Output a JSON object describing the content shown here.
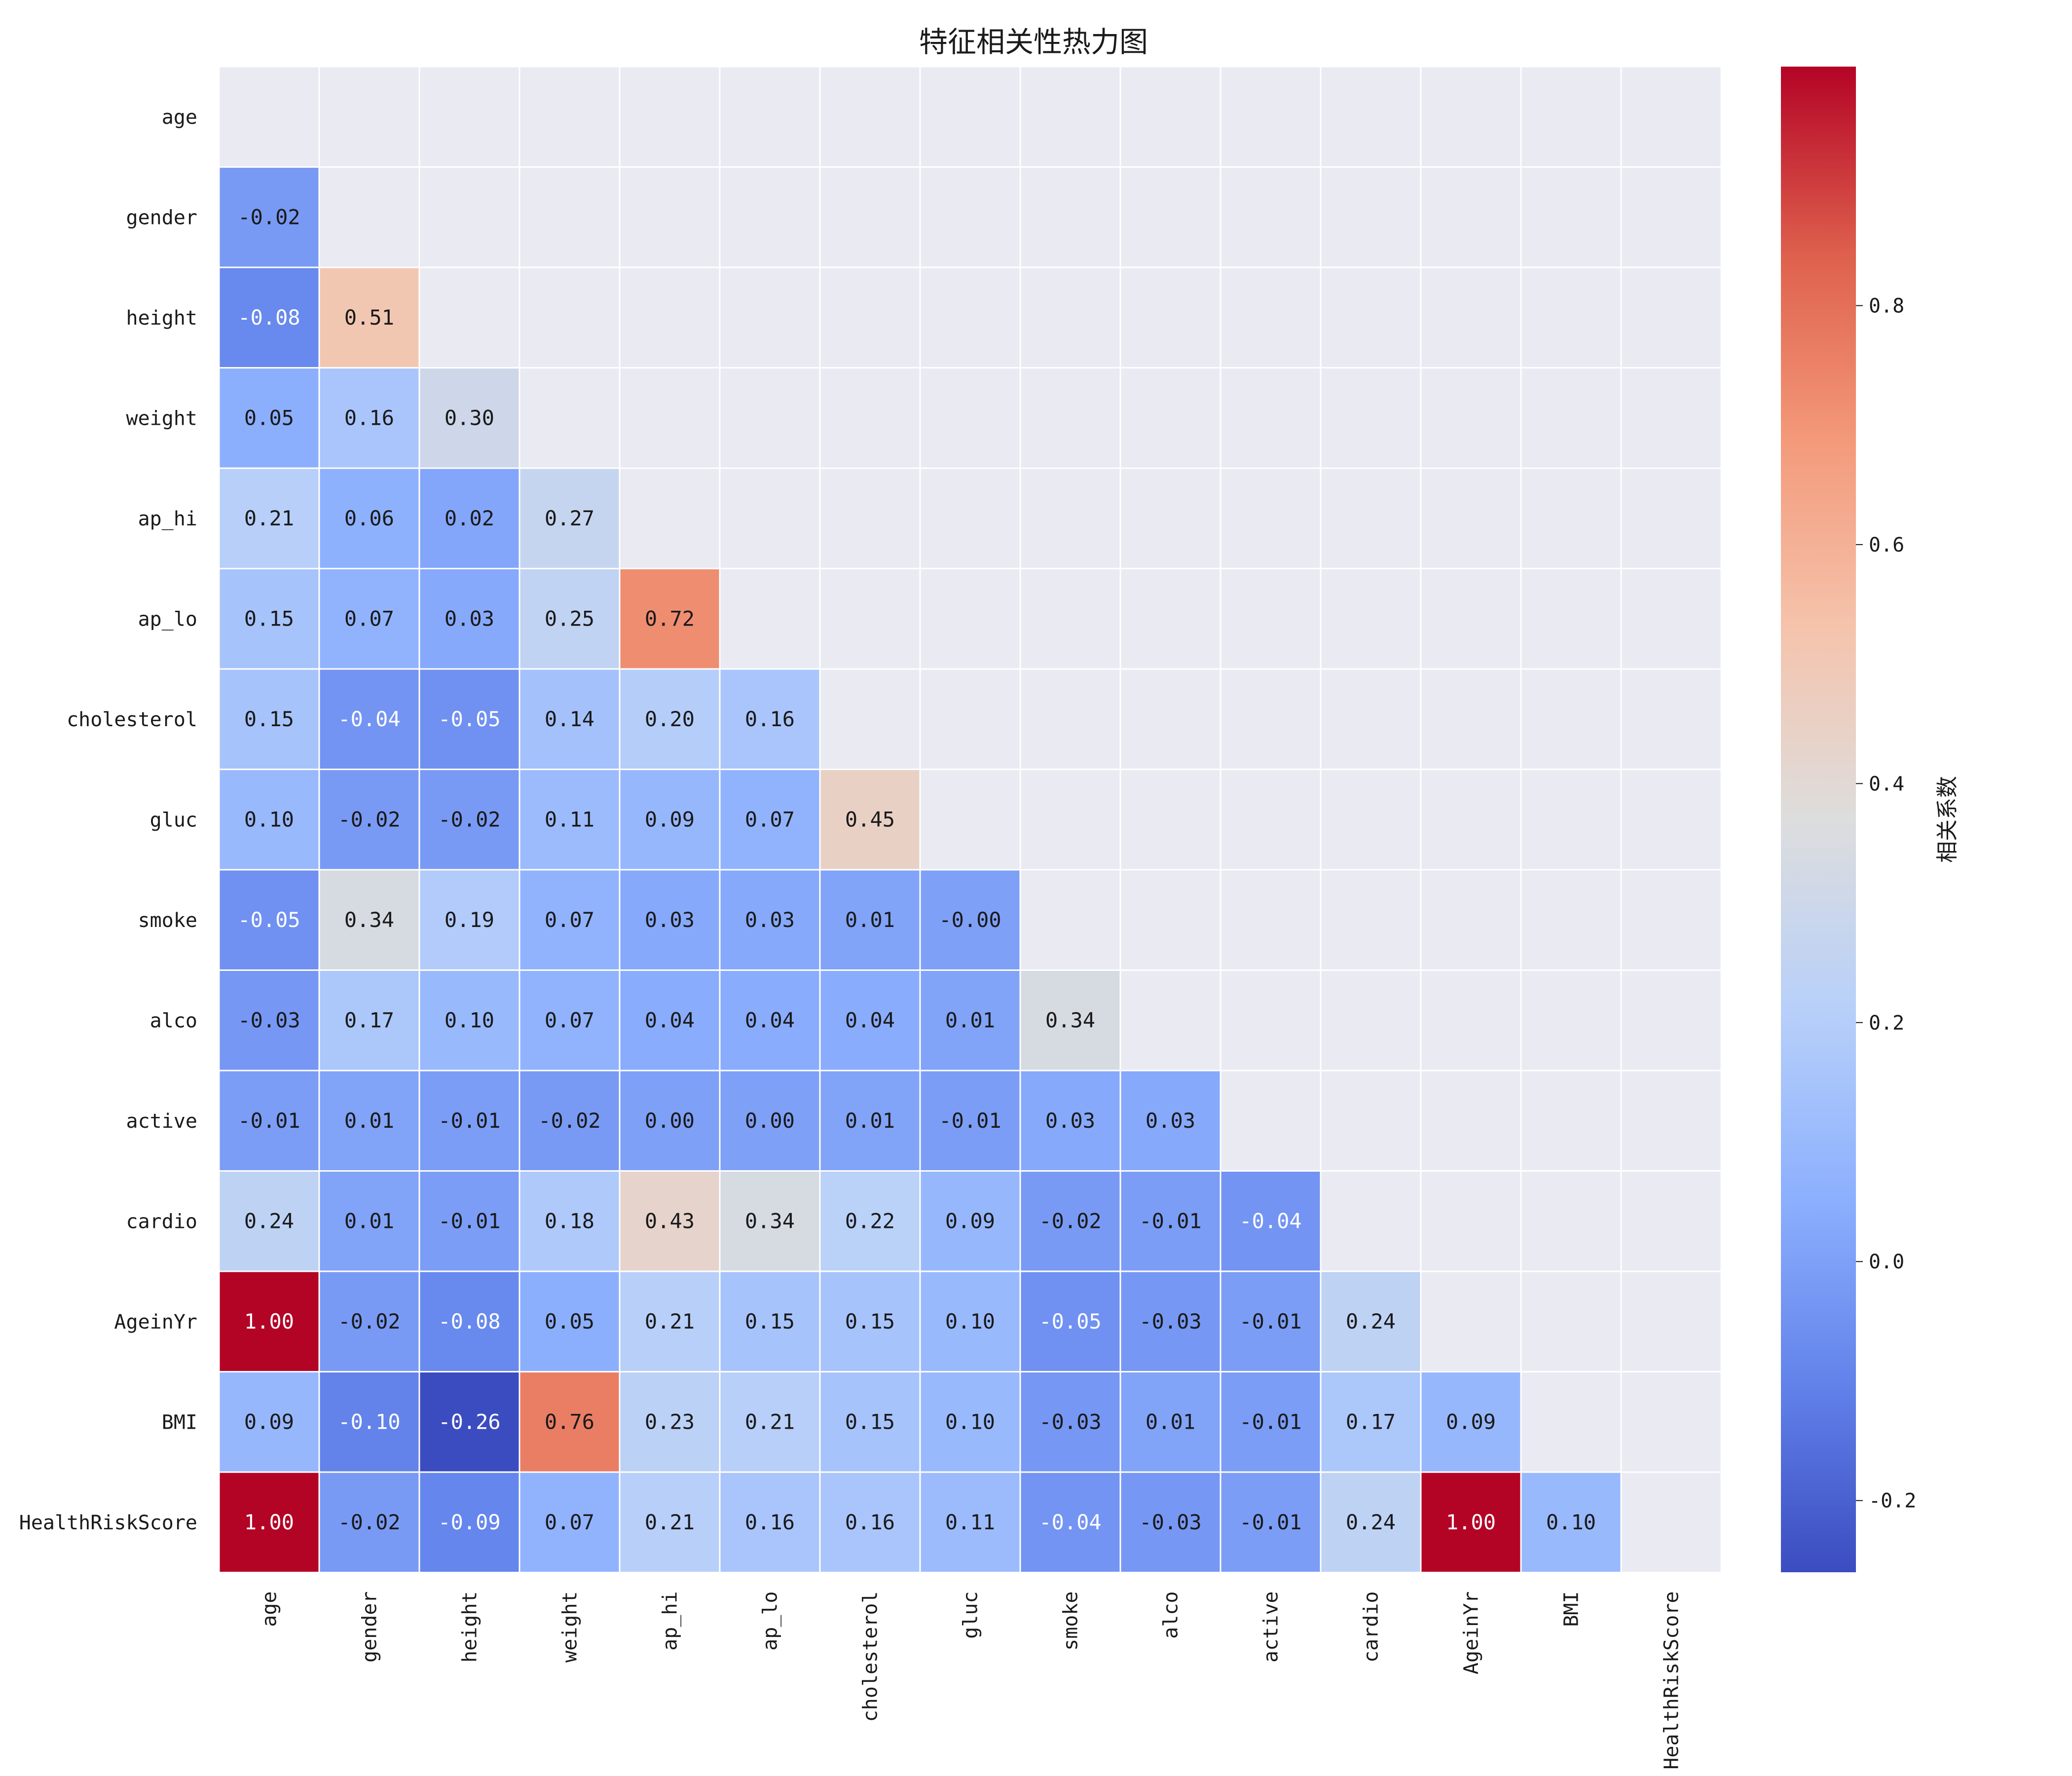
{
  "chart_data": {
    "type": "heatmap",
    "title": "特征相关性热力图",
    "labels": [
      "age",
      "gender",
      "height",
      "weight",
      "ap_hi",
      "ap_lo",
      "cholesterol",
      "gluc",
      "smoke",
      "alco",
      "active",
      "cardio",
      "AgeinYr",
      "BMI",
      "HealthRiskScore"
    ],
    "lower_triangle_only": true,
    "value_format": "0.00",
    "rows": [
      [],
      [
        "-0.02"
      ],
      [
        "-0.08",
        "0.51"
      ],
      [
        "0.05",
        "0.16",
        "0.30"
      ],
      [
        "0.21",
        "0.06",
        "0.02",
        "0.27"
      ],
      [
        "0.15",
        "0.07",
        "0.03",
        "0.25",
        "0.72"
      ],
      [
        "0.15",
        "-0.04",
        "-0.05",
        "0.14",
        "0.20",
        "0.16"
      ],
      [
        "0.10",
        "-0.02",
        "-0.02",
        "0.11",
        "0.09",
        "0.07",
        "0.45"
      ],
      [
        "-0.05",
        "0.34",
        "0.19",
        "0.07",
        "0.03",
        "0.03",
        "0.01",
        "-0.00"
      ],
      [
        "-0.03",
        "0.17",
        "0.10",
        "0.07",
        "0.04",
        "0.04",
        "0.04",
        "0.01",
        "0.34"
      ],
      [
        "-0.01",
        "0.01",
        "-0.01",
        "-0.02",
        "0.00",
        "0.00",
        "0.01",
        "-0.01",
        "0.03",
        "0.03"
      ],
      [
        "0.24",
        "0.01",
        "-0.01",
        "0.18",
        "0.43",
        "0.34",
        "0.22",
        "0.09",
        "-0.02",
        "-0.01",
        "-0.04"
      ],
      [
        "1.00",
        "-0.02",
        "-0.08",
        "0.05",
        "0.21",
        "0.15",
        "0.15",
        "0.10",
        "-0.05",
        "-0.03",
        "-0.01",
        "0.24"
      ],
      [
        "0.09",
        "-0.10",
        "-0.26",
        "0.76",
        "0.23",
        "0.21",
        "0.15",
        "0.10",
        "-0.03",
        "0.01",
        "-0.01",
        "0.17",
        "0.09"
      ],
      [
        "1.00",
        "-0.02",
        "-0.09",
        "0.07",
        "0.21",
        "0.16",
        "0.16",
        "0.11",
        "-0.04",
        "-0.03",
        "-0.01",
        "0.24",
        "1.00",
        "0.10"
      ]
    ],
    "colormap": "coolwarm",
    "vmin": -0.26,
    "vmax": 1.0,
    "colorbar": {
      "label": "相关系数",
      "ticks": [
        "0.8",
        "0.6",
        "0.4",
        "0.2",
        "0.0",
        "-0.2"
      ],
      "tick_values": [
        0.8,
        0.6,
        0.4,
        0.2,
        0.0,
        -0.2
      ]
    },
    "masked_cell_color": "#eaeaf2",
    "grid_line_color": "#ffffff"
  }
}
